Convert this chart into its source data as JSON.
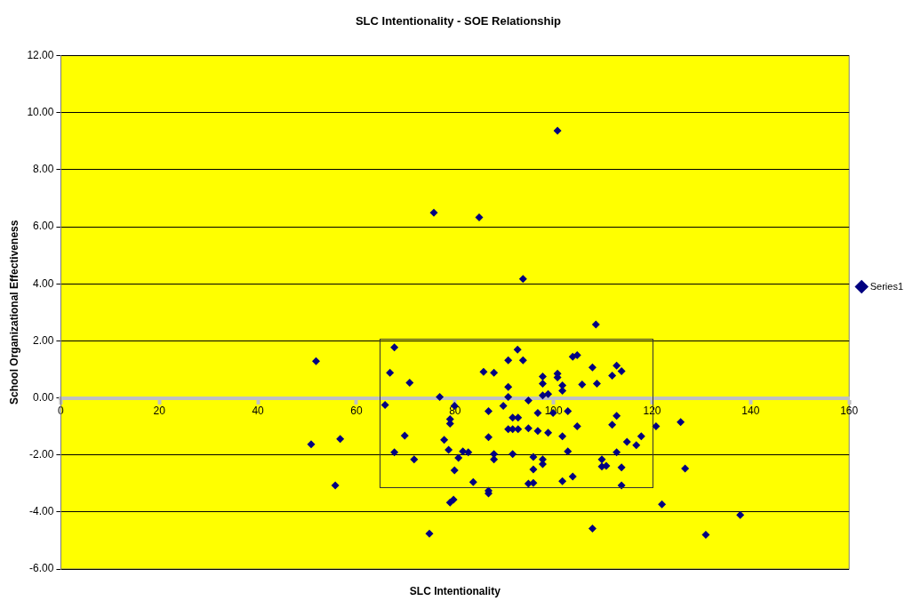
{
  "chart_data": {
    "type": "scatter",
    "title": "SLC Intentionality - SOE Relationship",
    "xlabel": "SLC Intentionality",
    "ylabel": "School Organizational Effectiveness",
    "xlim": [
      0,
      160
    ],
    "xticks": [
      0,
      20,
      40,
      60,
      80,
      100,
      120,
      140,
      160
    ],
    "ylim": [
      -6,
      12
    ],
    "yticks": [
      {
        "value": -6,
        "label": "-6.00"
      },
      {
        "value": -4,
        "label": "-4.00"
      },
      {
        "value": -2,
        "label": "-2.00"
      },
      {
        "value": 0,
        "label": "0.00"
      },
      {
        "value": 2,
        "label": "2.00"
      },
      {
        "value": 4,
        "label": "4.00"
      },
      {
        "value": 6,
        "label": "6.00"
      },
      {
        "value": 8,
        "label": "8.00"
      },
      {
        "value": 10,
        "label": "10.00"
      },
      {
        "value": 12,
        "label": "12.00"
      }
    ],
    "grid": "y",
    "legend": "right",
    "marker": "diamond",
    "series": [
      {
        "name": "Series1",
        "color": "#000080",
        "x": [
          100.8,
          75.7,
          84.9,
          93.8,
          108.6,
          51.8,
          67.7,
          66.8,
          70.8,
          65.8,
          76.9,
          79.9,
          50.8,
          56.7,
          55.7,
          69.8,
          67.7,
          71.7,
          77.8,
          78.7,
          79.0,
          79.0,
          80.7,
          81.6,
          82.7,
          79.9,
          83.7,
          79.0,
          79.7,
          74.8,
          92.7,
          90.8,
          93.8,
          85.8,
          87.9,
          103.9,
          104.8,
          107.9,
          112.8,
          113.8,
          111.9,
          108.8,
          105.8,
          97.8,
          100.8,
          100.8,
          97.8,
          101.8,
          101.8,
          90.8,
          90.8,
          97.8,
          98.9,
          94.9,
          89.8,
          86.8,
          91.7,
          92.8,
          96.8,
          99.9,
          102.9,
          112.8,
          111.9,
          104.8,
          90.8,
          91.7,
          92.8,
          94.9,
          96.8,
          98.9,
          101.8,
          86.8,
          120.8,
          117.8,
          116.8,
          114.9,
          112.8,
          102.9,
          91.7,
          87.9,
          87.9,
          95.9,
          97.8,
          97.8,
          109.8,
          109.8,
          110.7,
          113.8,
          95.9,
          103.9,
          101.8,
          94.9,
          95.9,
          113.8,
          86.8,
          86.8,
          107.9,
          122.0,
          125.8,
          126.7,
          137.9,
          130.9
        ],
        "values": [
          9.37,
          6.49,
          6.33,
          4.17,
          2.57,
          1.29,
          1.77,
          0.88,
          0.53,
          -0.25,
          0.03,
          -0.28,
          -1.63,
          -1.44,
          -3.07,
          -1.32,
          -1.91,
          -2.16,
          -1.47,
          -1.82,
          -0.75,
          -0.9,
          -2.1,
          -1.88,
          -1.91,
          -2.54,
          -2.95,
          -3.67,
          -3.57,
          -4.76,
          1.69,
          1.32,
          1.32,
          0.91,
          0.88,
          1.44,
          1.5,
          1.07,
          1.13,
          0.94,
          0.78,
          0.5,
          0.47,
          0.75,
          0.85,
          0.72,
          0.5,
          0.44,
          0.25,
          0.38,
          0.03,
          0.09,
          0.13,
          -0.09,
          -0.28,
          -0.47,
          -0.69,
          -0.69,
          -0.53,
          -0.53,
          -0.47,
          -0.63,
          -0.94,
          -1.0,
          -1.1,
          -1.1,
          -1.1,
          -1.07,
          -1.16,
          -1.22,
          -1.35,
          -1.38,
          -1.0,
          -1.35,
          -1.66,
          -1.54,
          -1.91,
          -1.88,
          -1.97,
          -1.97,
          -2.16,
          -2.07,
          -2.16,
          -2.32,
          -2.16,
          -2.41,
          -2.38,
          -2.44,
          -2.51,
          -2.76,
          -2.92,
          -3.01,
          -2.98,
          -3.07,
          -3.26,
          -3.35,
          -4.58,
          -3.73,
          -0.85,
          -2.48,
          -4.11,
          -4.8
        ]
      }
    ]
  }
}
